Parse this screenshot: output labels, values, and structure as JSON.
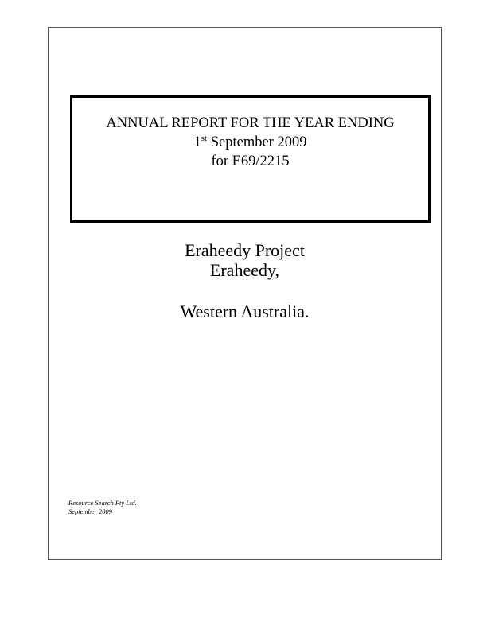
{
  "cover": {
    "title_line1": "ANNUAL REPORT FOR THE YEAR ENDING",
    "title_day": "1",
    "title_ordinal": "st",
    "title_date_rest": " September 2009",
    "title_line3": "for E69/2215"
  },
  "project": {
    "name": "Eraheedy Project",
    "place": "Eraheedy,",
    "state": "Western Australia."
  },
  "footer": {
    "company": "Resource Search Pty Ltd.",
    "date": "September 2009"
  }
}
